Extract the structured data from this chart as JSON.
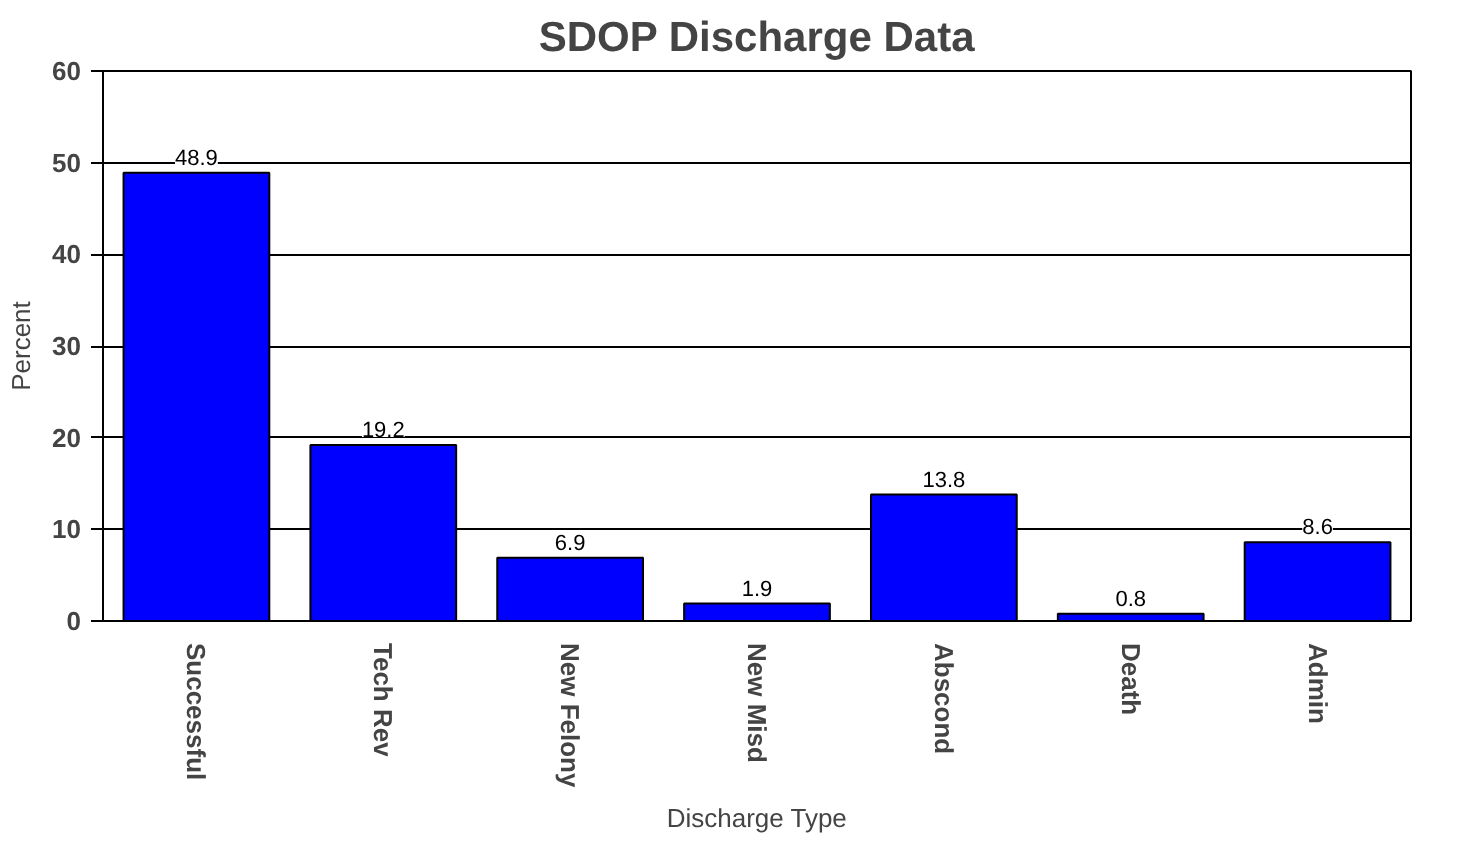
{
  "chart_data": {
    "type": "bar",
    "title": "SDOP Discharge Data",
    "xlabel": "Discharge Type",
    "ylabel": "Percent",
    "categories": [
      "Successful",
      "Tech Rev",
      "New Felony",
      "New Misd",
      "Abscond",
      "Death",
      "Admin"
    ],
    "values": [
      48.9,
      19.2,
      6.9,
      1.9,
      13.8,
      0.8,
      8.6
    ],
    "color": "#0000ff",
    "ylim": [
      0,
      60
    ],
    "yticks": [
      0,
      10,
      20,
      30,
      40,
      50,
      60
    ],
    "grid": "y",
    "data_labels": true
  }
}
